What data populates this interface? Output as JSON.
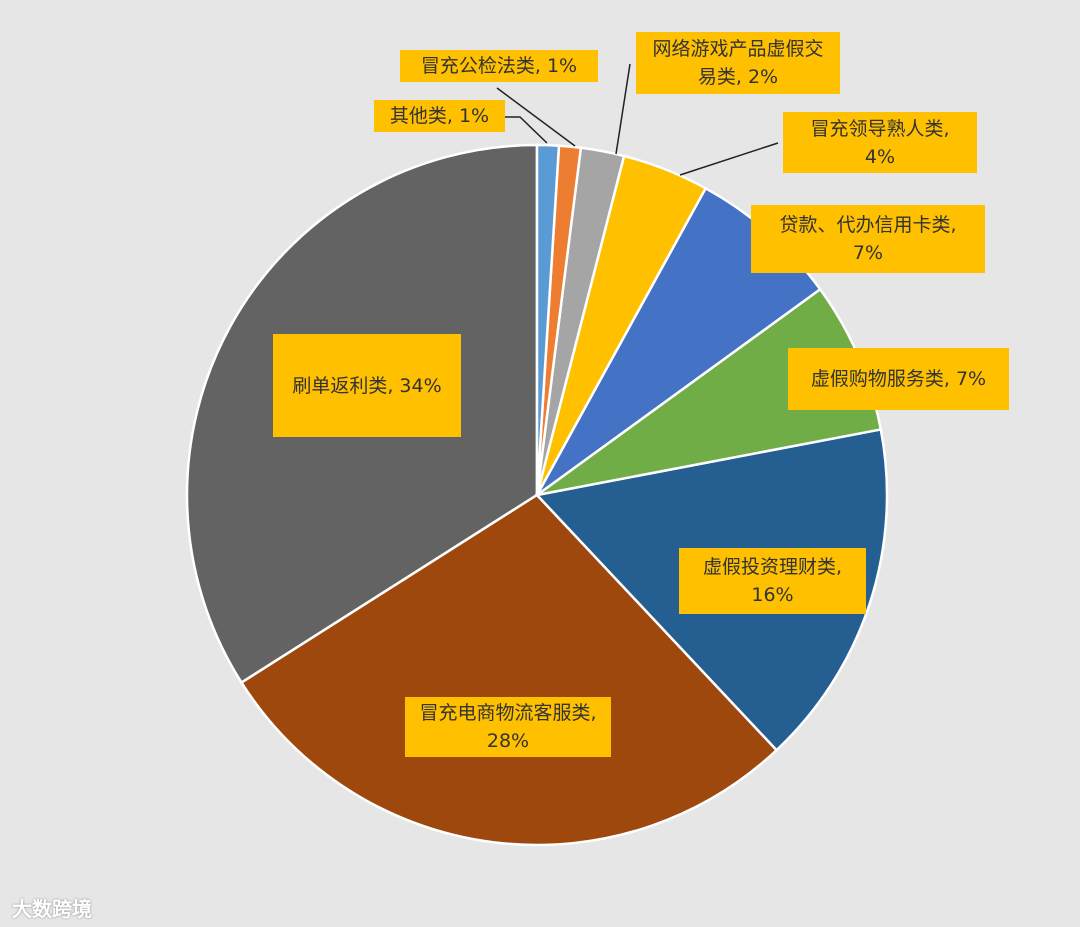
{
  "chart_data": {
    "type": "pie",
    "values": [
      1,
      1,
      2,
      4,
      7,
      7,
      16,
      28,
      34
    ],
    "value_labels": [
      "其他类, 1%",
      "冒充公检法类, 1%",
      "网络游戏产品虚假交易类, 2%",
      "冒充领导熟人类, 4%",
      "贷款、代办信用卡类, 7%",
      "虚假购物服务类, 7%",
      "虚假投资理财类, 16%",
      "冒充电商物流客服类, 28%",
      "刷单返利类, 34%"
    ],
    "colors": [
      "#5b9bd5",
      "#ed7d31",
      "#a5a5a5",
      "#ffc000",
      "#4472c4",
      "#70ad47",
      "#255e91",
      "#9e480e",
      "#636363"
    ],
    "label_color": "#ffc000"
  },
  "watermark": "大数跨境"
}
